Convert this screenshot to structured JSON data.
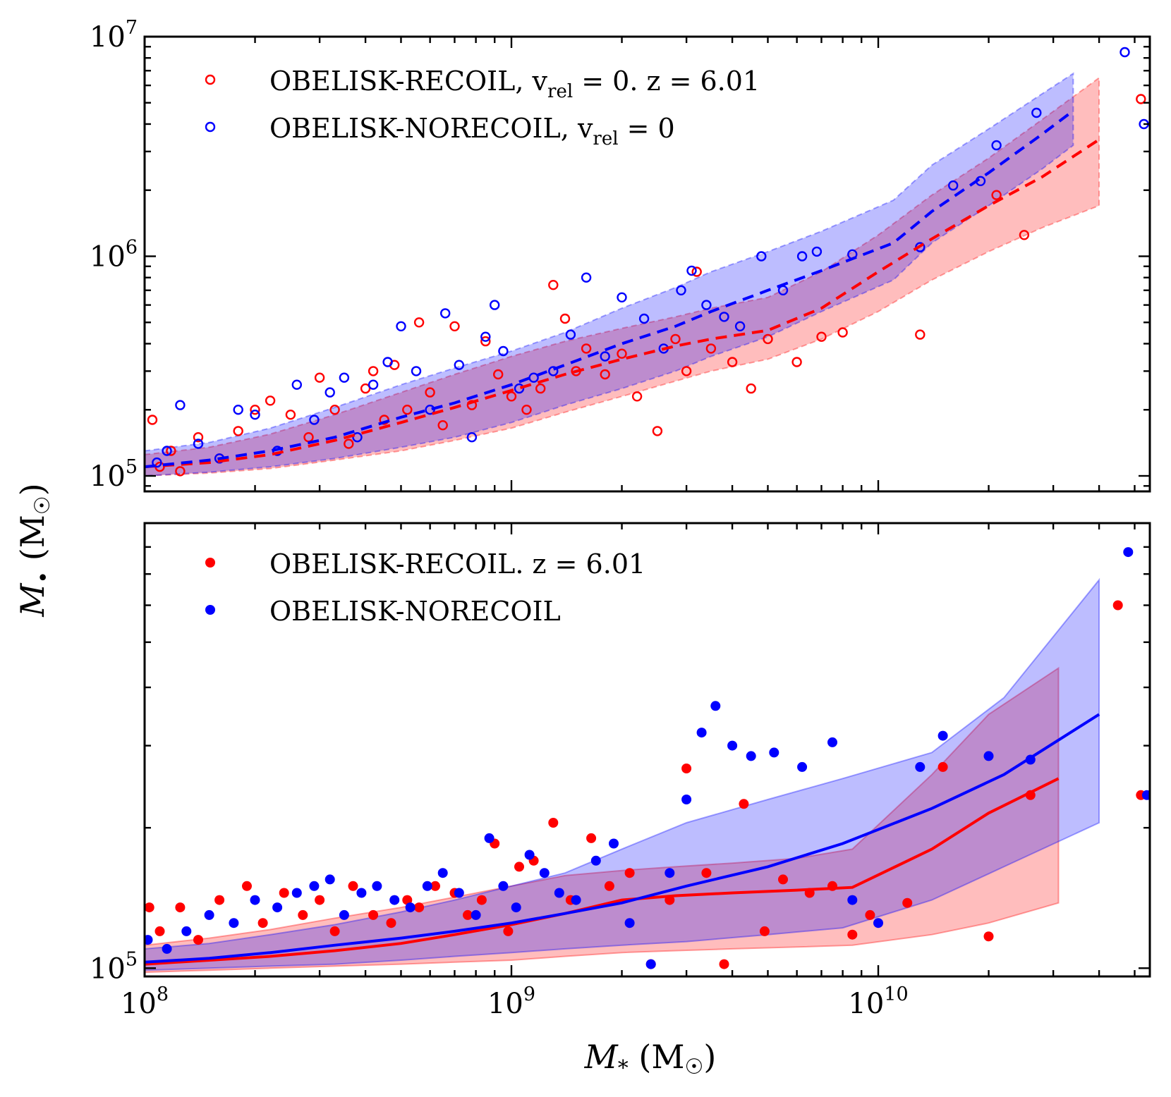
{
  "chart_data": [
    {
      "type": "scatter",
      "panel": "top",
      "xscale": "log",
      "yscale": "log",
      "xlim": [
        100000000,
        55000000000
      ],
      "ylim": [
        85000,
        10000000
      ],
      "grid": false,
      "legend_position": "top-left",
      "xtick_labels": [],
      "ytick_labels": [
        {
          "value": 100000,
          "base": "10",
          "exp": "5"
        },
        {
          "value": 1000000,
          "base": "10",
          "exp": "6"
        },
        {
          "value": 10000000,
          "base": "10",
          "exp": "7"
        }
      ],
      "series": [
        {
          "name": "Obelisk-Recoil, v_rel = 0. z = 6.01",
          "legend_label": "OBELISK-RECOIL, v",
          "legend_sub": "rel",
          "legend_tail": " = 0.  z = 6.01",
          "color": "#ff0000",
          "marker": "open-circle",
          "median_x": [
            100000000,
            150000000,
            220000000,
            330000000,
            500000000,
            700000000,
            1000000000,
            1400000000,
            2000000000,
            2800000000,
            3500000000,
            5000000000,
            7000000000,
            10000000000,
            14000000000,
            20000000000,
            28000000000,
            40000000000
          ],
          "median_y": [
            110000,
            115000,
            125000,
            145000,
            175000,
            205000,
            245000,
            290000,
            340000,
            390000,
            420000,
            460000,
            580000,
            850000,
            1200000,
            1700000,
            2300000,
            3400000
          ],
          "band_low": [
            100000,
            103000,
            108000,
            118000,
            130000,
            145000,
            165000,
            195000,
            230000,
            270000,
            300000,
            340000,
            420000,
            560000,
            780000,
            1050000,
            1350000,
            1700000
          ],
          "band_high": [
            125000,
            135000,
            155000,
            190000,
            240000,
            290000,
            350000,
            410000,
            470000,
            530000,
            580000,
            650000,
            850000,
            1250000,
            1900000,
            2800000,
            4200000,
            6500000
          ],
          "points_x": [
            105000000,
            110000000,
            118000000,
            125000000,
            140000000,
            160000000,
            180000000,
            200000000,
            220000000,
            250000000,
            280000000,
            300000000,
            330000000,
            360000000,
            400000000,
            420000000,
            450000000,
            480000000,
            520000000,
            560000000,
            600000000,
            650000000,
            700000000,
            780000000,
            850000000,
            920000000,
            1000000000,
            1100000000,
            1200000000,
            1300000000,
            1400000000,
            1500000000,
            1600000000,
            1800000000,
            2000000000,
            2200000000,
            2500000000,
            2800000000,
            3000000000,
            3200000000,
            3500000000,
            4000000000,
            4500000000,
            5000000000,
            6000000000,
            7000000000,
            8000000000,
            13000000000,
            21000000000,
            25000000000,
            52000000000
          ],
          "points_y": [
            180000,
            110000,
            130000,
            105000,
            150000,
            120000,
            160000,
            200000,
            220000,
            190000,
            150000,
            280000,
            200000,
            140000,
            250000,
            300000,
            180000,
            320000,
            200000,
            500000,
            240000,
            170000,
            480000,
            210000,
            410000,
            290000,
            230000,
            200000,
            250000,
            740000,
            520000,
            300000,
            380000,
            290000,
            360000,
            230000,
            160000,
            420000,
            300000,
            850000,
            380000,
            330000,
            250000,
            420000,
            330000,
            430000,
            450000,
            440000,
            1900000,
            1250000,
            5200000
          ]
        },
        {
          "name": "Obelisk-noRecoil, v_rel = 0",
          "legend_label": "OBELISK-NORECOIL, v",
          "legend_sub": "rel",
          "legend_tail": " = 0",
          "color": "#0000ff",
          "marker": "open-circle",
          "median_x": [
            100000000,
            150000000,
            220000000,
            330000000,
            500000000,
            700000000,
            1000000000,
            1400000000,
            2000000000,
            2800000000,
            3500000000,
            5000000000,
            7000000000,
            11000000000,
            14000000000,
            20000000000,
            28000000000,
            34000000000
          ],
          "median_y": [
            110000,
            118000,
            130000,
            150000,
            185000,
            215000,
            260000,
            320000,
            400000,
            480000,
            560000,
            700000,
            860000,
            1150000,
            1600000,
            2400000,
            3600000,
            4600000
          ],
          "band_low": [
            100000,
            104000,
            110000,
            120000,
            135000,
            150000,
            175000,
            210000,
            250000,
            300000,
            350000,
            430000,
            560000,
            780000,
            1150000,
            1700000,
            2500000,
            3200000
          ],
          "band_high": [
            130000,
            142000,
            165000,
            205000,
            260000,
            310000,
            370000,
            450000,
            580000,
            720000,
            850000,
            1050000,
            1300000,
            1800000,
            2600000,
            3800000,
            5500000,
            6800000
          ],
          "points_x": [
            108000000,
            115000000,
            125000000,
            140000000,
            160000000,
            180000000,
            200000000,
            230000000,
            260000000,
            290000000,
            320000000,
            350000000,
            380000000,
            420000000,
            460000000,
            500000000,
            550000000,
            600000000,
            660000000,
            720000000,
            780000000,
            850000000,
            900000000,
            950000000,
            1050000000,
            1150000000,
            1300000000,
            1450000000,
            1600000000,
            1800000000,
            2000000000,
            2300000000,
            2600000000,
            2900000000,
            3100000000,
            3400000000,
            3800000000,
            4200000000,
            4800000000,
            5500000000,
            6200000000,
            6800000000,
            8500000000,
            13000000000,
            16000000000,
            19000000000,
            21000000000,
            27000000000,
            47000000000,
            53000000000
          ],
          "points_y": [
            115000,
            130000,
            210000,
            140000,
            120000,
            200000,
            190000,
            130000,
            260000,
            180000,
            240000,
            280000,
            150000,
            260000,
            330000,
            480000,
            300000,
            200000,
            550000,
            320000,
            150000,
            430000,
            600000,
            370000,
            250000,
            280000,
            300000,
            440000,
            800000,
            350000,
            650000,
            520000,
            380000,
            700000,
            860000,
            600000,
            530000,
            480000,
            1000000,
            700000,
            1000000,
            1050000,
            1020000,
            1100000,
            2100000,
            2200000,
            3200000,
            4500000,
            8500000,
            4000000
          ]
        }
      ]
    },
    {
      "type": "scatter",
      "panel": "bottom",
      "xscale": "log",
      "yscale": "log",
      "xlim": [
        100000000,
        55000000000
      ],
      "ylim": [
        96000,
        900000
      ],
      "xlabel": "M* (M☉)",
      "ylabel": "M• (M☉)",
      "grid": false,
      "legend_position": "top-left",
      "xtick_labels": [
        {
          "value": 100000000,
          "base": "10",
          "exp": "8"
        },
        {
          "value": 1000000000,
          "base": "10",
          "exp": "9"
        },
        {
          "value": 10000000000,
          "base": "10",
          "exp": "10"
        }
      ],
      "ytick_labels": [
        {
          "value": 100000,
          "base": "10",
          "exp": "5"
        }
      ],
      "series": [
        {
          "name": "Obelisk-Recoil. z = 6.01",
          "legend_label": "OBELISK-RECOIL.  z = 6.01",
          "color": "#ff0000",
          "marker": "filled-circle",
          "median_x": [
            100000000,
            150000000,
            220000000,
            330000000,
            500000000,
            700000000,
            1000000000,
            1400000000,
            2000000000,
            2800000000,
            4000000000,
            6000000000,
            8500000000,
            14000000000,
            20000000000,
            31000000000
          ],
          "median_y": [
            102000,
            104000,
            106000,
            109000,
            113000,
            118000,
            124000,
            131000,
            140000,
            143000,
            145000,
            147000,
            149000,
            180000,
            215000,
            255000
          ],
          "band_low": [
            98000,
            99000,
            100000,
            101000,
            102000,
            103000,
            104000,
            106000,
            108000,
            109000,
            110000,
            111000,
            112000,
            118000,
            125000,
            138000
          ],
          "band_high": [
            112000,
            116000,
            121000,
            128000,
            135000,
            142000,
            150000,
            158000,
            162000,
            165000,
            168000,
            172000,
            180000,
            260000,
            350000,
            440000
          ],
          "points_x": [
            103000000,
            110000000,
            125000000,
            140000000,
            160000000,
            190000000,
            210000000,
            240000000,
            270000000,
            300000000,
            330000000,
            370000000,
            420000000,
            470000000,
            520000000,
            560000000,
            620000000,
            700000000,
            760000000,
            830000000,
            900000000,
            980000000,
            1050000000,
            1150000000,
            1300000000,
            1450000000,
            1650000000,
            1850000000,
            2100000000,
            2400000000,
            2700000000,
            3000000000,
            3400000000,
            3800000000,
            4300000000,
            4900000000,
            5500000000,
            6500000000,
            7500000000,
            8500000000,
            9500000000,
            12000000000,
            15000000000,
            20000000000,
            26000000000,
            45000000000,
            52000000000
          ],
          "points_y": [
            135000,
            120000,
            135000,
            115000,
            140000,
            150000,
            125000,
            145000,
            130000,
            140000,
            120000,
            150000,
            130000,
            125000,
            140000,
            135000,
            150000,
            145000,
            130000,
            140000,
            185000,
            120000,
            165000,
            170000,
            205000,
            140000,
            190000,
            150000,
            160000,
            102000,
            140000,
            268000,
            160000,
            102000,
            225000,
            120000,
            155000,
            145000,
            150000,
            118000,
            130000,
            138000,
            270000,
            117000,
            235000,
            600000,
            235000
          ]
        },
        {
          "name": "Obelisk-noRecoil",
          "legend_label": "OBELISK-NORECOIL",
          "color": "#0000ff",
          "marker": "filled-circle",
          "median_x": [
            100000000,
            150000000,
            220000000,
            330000000,
            500000000,
            700000000,
            1000000000,
            1400000000,
            2000000000,
            3000000000,
            5000000000,
            8000000000,
            14000000000,
            22000000000,
            40000000000
          ],
          "median_y": [
            103000,
            105000,
            108000,
            112000,
            116000,
            120000,
            125000,
            131000,
            138000,
            150000,
            165000,
            185000,
            220000,
            260000,
            350000
          ],
          "band_low": [
            99000,
            100000,
            101000,
            102000,
            104000,
            106000,
            108000,
            110000,
            112000,
            114000,
            118000,
            122000,
            140000,
            165000,
            205000
          ],
          "band_high": [
            110000,
            113000,
            118000,
            124000,
            132000,
            140000,
            150000,
            160000,
            180000,
            205000,
            230000,
            255000,
            290000,
            380000,
            680000
          ],
          "points_x": [
            102000000,
            115000000,
            130000000,
            150000000,
            175000000,
            200000000,
            230000000,
            260000000,
            290000000,
            320000000,
            350000000,
            390000000,
            430000000,
            480000000,
            530000000,
            590000000,
            650000000,
            720000000,
            800000000,
            870000000,
            950000000,
            1030000000,
            1120000000,
            1230000000,
            1350000000,
            1500000000,
            1700000000,
            1900000000,
            2100000000,
            2400000000,
            2700000000,
            3000000000,
            3300000000,
            3600000000,
            4000000000,
            4500000000,
            5200000000,
            6200000000,
            7500000000,
            8500000000,
            10000000000,
            13000000000,
            15000000000,
            20000000000,
            26000000000,
            48000000000,
            54000000000
          ],
          "points_y": [
            115000,
            110000,
            120000,
            130000,
            125000,
            140000,
            135000,
            145000,
            150000,
            155000,
            130000,
            145000,
            150000,
            140000,
            135000,
            150000,
            160000,
            145000,
            130000,
            190000,
            150000,
            135000,
            175000,
            160000,
            145000,
            140000,
            170000,
            185000,
            125000,
            102000,
            160000,
            230000,
            320000,
            365000,
            300000,
            285000,
            290000,
            270000,
            305000,
            140000,
            125000,
            270000,
            315000,
            285000,
            280000,
            780000,
            235000
          ]
        }
      ]
    }
  ],
  "figure": {
    "shared_ylabel": "M• (M☉)",
    "ylabel_main": "M",
    "ylabel_sub": "•",
    "ylabel_tail": " (M",
    "ylabel_sun": "☉",
    "ylabel_close": ")",
    "xlabel_main": "M",
    "xlabel_sub": "*",
    "xlabel_tail": " (M",
    "xlabel_sun": "☉",
    "xlabel_close": ")"
  }
}
